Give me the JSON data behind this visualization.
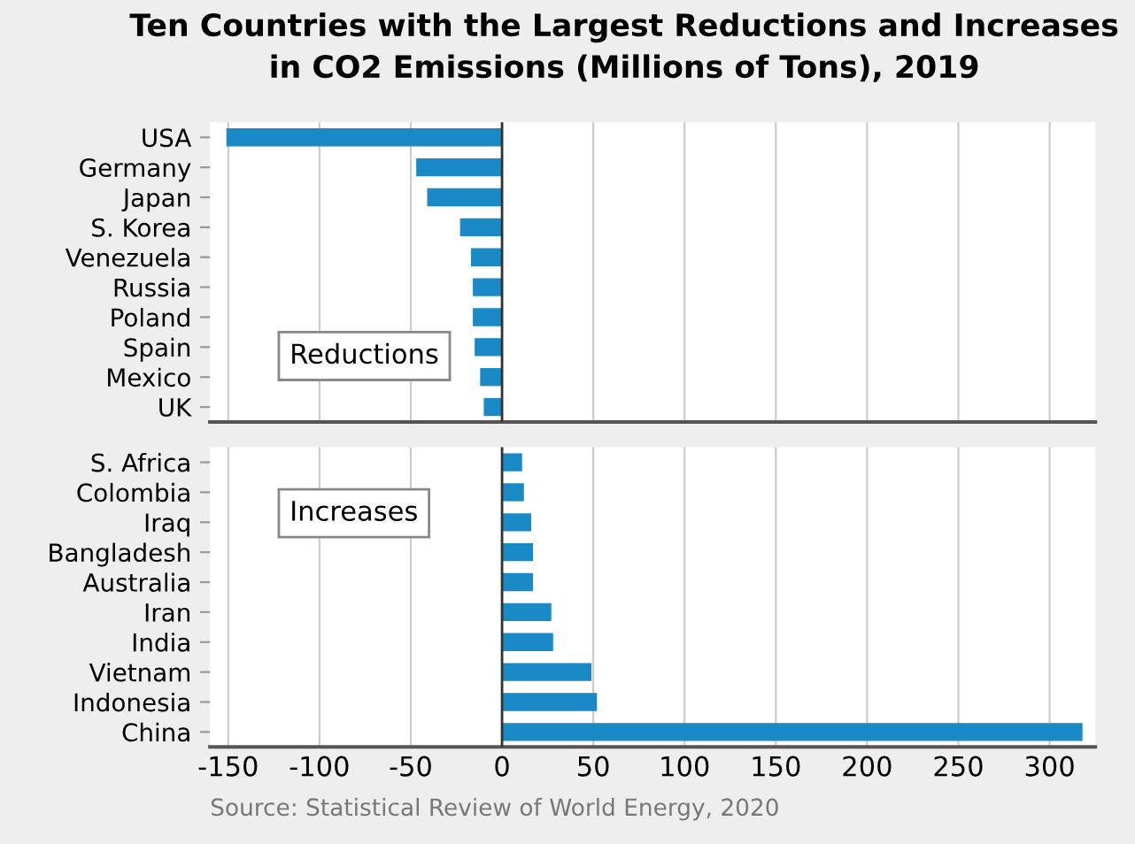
{
  "chart_data": [
    {
      "type": "bar",
      "orientation": "horizontal",
      "title": "Ten Countries with the Largest Reductions and Increases\nin CO2 Emissions (Millions of Tons), 2019",
      "categories": [
        "USA",
        "Germany",
        "Japan",
        "S. Korea",
        "Venezuela",
        "Russia",
        "Poland",
        "Spain",
        "Mexico",
        "UK"
      ],
      "values": [
        -151,
        -47,
        -41,
        -23,
        -17,
        -16,
        -16,
        -15,
        -12,
        -10
      ],
      "color": "#1a8ac6",
      "xlim": [
        -160,
        325
      ],
      "xticks": [
        -150,
        -100,
        -50,
        0,
        50,
        100,
        150,
        200,
        250,
        300
      ],
      "grid": "x",
      "tick_labels": "y",
      "annotations": [
        "Reductions"
      ]
    },
    {
      "type": "bar",
      "orientation": "horizontal",
      "categories": [
        "S. Africa",
        "Colombia",
        "Iraq",
        "Bangladesh",
        "Australia",
        "Iran",
        "India",
        "Vietnam",
        "Indonesia",
        "China"
      ],
      "values": [
        11,
        12,
        16,
        17,
        17,
        27,
        28,
        49,
        52,
        318
      ],
      "color": "#1a8ac6",
      "xlim": [
        -160,
        325
      ],
      "xticks": [
        -150,
        -100,
        -50,
        0,
        50,
        100,
        150,
        200,
        250,
        300
      ],
      "grid": "x",
      "annotations": [
        "Increases",
        "Source: Statistical Review of World Energy, 2020"
      ]
    }
  ]
}
